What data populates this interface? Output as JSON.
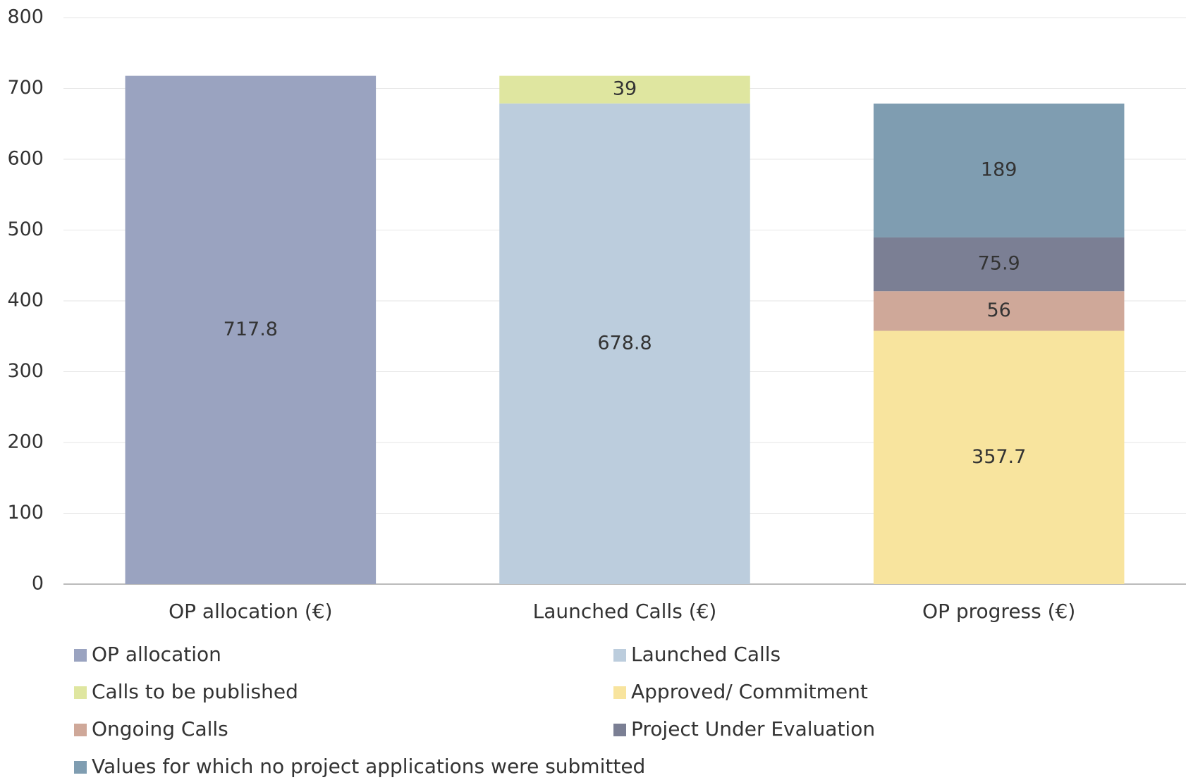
{
  "chart_data": {
    "type": "stacked_bar",
    "categories": [
      "OP allocation (€)",
      "Launched Calls (€)",
      "OP progress (€)"
    ],
    "series": [
      {
        "name": "OP allocation",
        "color": "#9aa3c0",
        "values": [
          717.8,
          null,
          null
        ]
      },
      {
        "name": "Launched Calls",
        "color": "#bccddd",
        "values": [
          null,
          678.8,
          null
        ]
      },
      {
        "name": "Calls to be published",
        "color": "#dfe6a0",
        "values": [
          null,
          39,
          null
        ]
      },
      {
        "name": "Approved/ Commitment",
        "color": "#f8e49e",
        "values": [
          null,
          null,
          357.7
        ]
      },
      {
        "name": "Ongoing Calls",
        "color": "#cfa899",
        "values": [
          null,
          null,
          56
        ]
      },
      {
        "name": "Project Under Evaluation",
        "color": "#7b7f94",
        "values": [
          null,
          null,
          75.9
        ]
      },
      {
        "name": "Values for which no project applications were submitted",
        "color": "#7f9db1",
        "values": [
          null,
          null,
          189
        ]
      }
    ],
    "ylim": [
      0,
      800
    ],
    "yticks": [
      0,
      100,
      200,
      300,
      400,
      500,
      600,
      700,
      800
    ],
    "grid": true,
    "legend": "bottom"
  }
}
